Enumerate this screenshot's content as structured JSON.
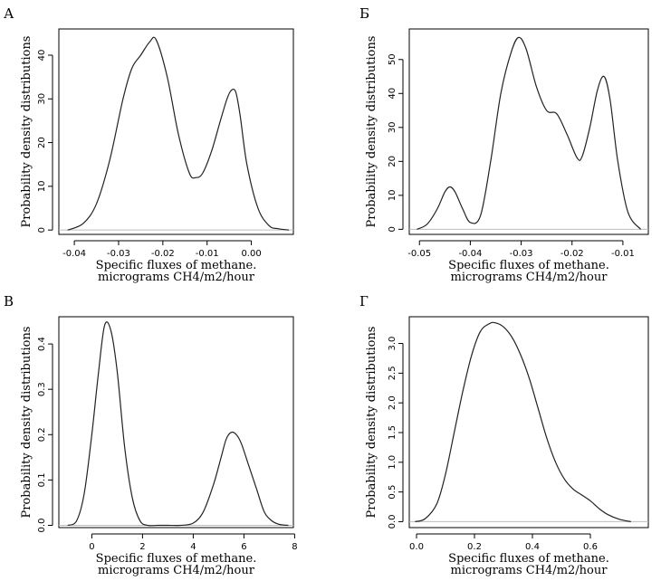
{
  "chart_data": [
    {
      "type": "line",
      "panel": "А",
      "xlabel_lines": [
        "Specific fluxes of methane.",
        "micrograms CH4/m2/hour"
      ],
      "ylabel": "Probability density distributions",
      "xlim": [
        -0.0435,
        0.0095
      ],
      "ylim": [
        -1,
        46
      ],
      "xticks": [
        -0.04,
        -0.03,
        -0.02,
        -0.01,
        0.0
      ],
      "xtick_labels": [
        "-0.04",
        "-0.03",
        "-0.02",
        "-0.01",
        "0.00"
      ],
      "yticks": [
        0,
        10,
        20,
        30,
        40
      ],
      "ytick_labels": [
        "0",
        "10",
        "20",
        "30",
        "40"
      ],
      "series": [
        {
          "x": [
            -0.0415,
            -0.038,
            -0.035,
            -0.032,
            -0.029,
            -0.027,
            -0.025,
            -0.023,
            -0.0215,
            -0.019,
            -0.0165,
            -0.014,
            -0.0125,
            -0.011,
            -0.009,
            -0.007,
            -0.0055,
            -0.0045,
            -0.0035,
            -0.0025,
            -0.001,
            0.0015,
            0.004,
            0.006,
            0.0085
          ],
          "y": [
            0,
            1.5,
            6,
            16,
            30,
            37,
            40,
            43,
            43.5,
            35,
            22,
            13,
            12,
            13,
            18,
            25,
            30,
            32,
            31.5,
            26,
            15,
            5,
            1,
            0.3,
            0
          ]
        }
      ]
    },
    {
      "type": "line",
      "panel": "Б",
      "xlabel_lines": [
        "Specific fluxes of methane.",
        "micrograms CH4/m2/hour"
      ],
      "ylabel": "Probability density distributions",
      "xlim": [
        -0.052,
        -0.005
      ],
      "ylim": [
        -1.5,
        59
      ],
      "xticks": [
        -0.05,
        -0.04,
        -0.03,
        -0.02,
        -0.01
      ],
      "xtick_labels": [
        "-0.05",
        "-0.04",
        "-0.03",
        "-0.02",
        "-0.01"
      ],
      "yticks": [
        0,
        10,
        20,
        30,
        40,
        50
      ],
      "ytick_labels": [
        "0",
        "10",
        "20",
        "30",
        "40",
        "50"
      ],
      "series": [
        {
          "x": [
            -0.0505,
            -0.0485,
            -0.0465,
            -0.045,
            -0.044,
            -0.043,
            -0.0415,
            -0.04,
            -0.038,
            -0.036,
            -0.034,
            -0.032,
            -0.0305,
            -0.029,
            -0.027,
            -0.025,
            -0.023,
            -0.021,
            -0.019,
            -0.018,
            -0.0165,
            -0.015,
            -0.0137,
            -0.0125,
            -0.011,
            -0.009,
            -0.0065
          ],
          "y": [
            0,
            1.5,
            6,
            11,
            12.5,
            11,
            6,
            2,
            4,
            20,
            40,
            52,
            56.5,
            53,
            42,
            35,
            34,
            28,
            21,
            21.5,
            30,
            41,
            45,
            38,
            20,
            5,
            0
          ]
        }
      ]
    },
    {
      "type": "line",
      "panel": "В",
      "xlabel_lines": [
        "Specific fluxes of methane.",
        "micrograms CH4/m2/hour"
      ],
      "ylabel": "Probability density distributions",
      "xlim": [
        -1.3,
        7.95
      ],
      "ylim": [
        -0.005,
        0.46
      ],
      "xticks": [
        0,
        2,
        4,
        6,
        8
      ],
      "xtick_labels": [
        "0",
        "2",
        "4",
        "6",
        "8"
      ],
      "yticks": [
        0.0,
        0.1,
        0.2,
        0.3,
        0.4
      ],
      "ytick_labels": [
        "0.0",
        "0.1",
        "0.2",
        "0.3",
        "0.4"
      ],
      "series": [
        {
          "x": [
            -0.95,
            -0.6,
            -0.3,
            0.0,
            0.25,
            0.5,
            0.75,
            1.0,
            1.3,
            1.6,
            1.9,
            2.2,
            2.6,
            3.0,
            3.5,
            4.0,
            4.4,
            4.8,
            5.1,
            5.3,
            5.5,
            5.7,
            5.9,
            6.2,
            6.5,
            6.8,
            7.1,
            7.4,
            7.75
          ],
          "y": [
            0,
            0.01,
            0.07,
            0.2,
            0.33,
            0.44,
            0.43,
            0.34,
            0.17,
            0.06,
            0.01,
            0.0,
            0.0,
            0.0,
            0.0,
            0.005,
            0.03,
            0.09,
            0.15,
            0.19,
            0.205,
            0.2,
            0.18,
            0.13,
            0.08,
            0.03,
            0.01,
            0.002,
            0
          ]
        }
      ]
    },
    {
      "type": "line",
      "panel": "Г",
      "xlabel_lines": [
        "Specific fluxes of methane.",
        "micrograms CH4/m2/hour"
      ],
      "ylabel": "Probability density distributions",
      "xlim": [
        -0.025,
        0.8
      ],
      "ylim": [
        -0.1,
        3.45
      ],
      "xticks": [
        0.0,
        0.2,
        0.4,
        0.6
      ],
      "xtick_labels": [
        "0.0",
        "0.2",
        "0.4",
        "0.6"
      ],
      "yticks": [
        0.0,
        0.5,
        1.0,
        1.5,
        2.0,
        2.5,
        3.0
      ],
      "ytick_labels": [
        "0.0",
        "0.5",
        "1.0",
        "1.5",
        "2.0",
        "2.5",
        "3.0"
      ],
      "series": [
        {
          "x": [
            -0.005,
            0.03,
            0.07,
            0.1,
            0.13,
            0.16,
            0.19,
            0.22,
            0.25,
            0.27,
            0.3,
            0.33,
            0.36,
            0.39,
            0.42,
            0.45,
            0.48,
            0.51,
            0.54,
            0.57,
            0.6,
            0.63,
            0.66,
            0.7,
            0.74
          ],
          "y": [
            0,
            0.05,
            0.3,
            0.8,
            1.5,
            2.2,
            2.8,
            3.2,
            3.33,
            3.35,
            3.28,
            3.1,
            2.8,
            2.4,
            1.9,
            1.4,
            1.0,
            0.72,
            0.55,
            0.45,
            0.35,
            0.22,
            0.12,
            0.04,
            0.0
          ]
        }
      ]
    }
  ]
}
